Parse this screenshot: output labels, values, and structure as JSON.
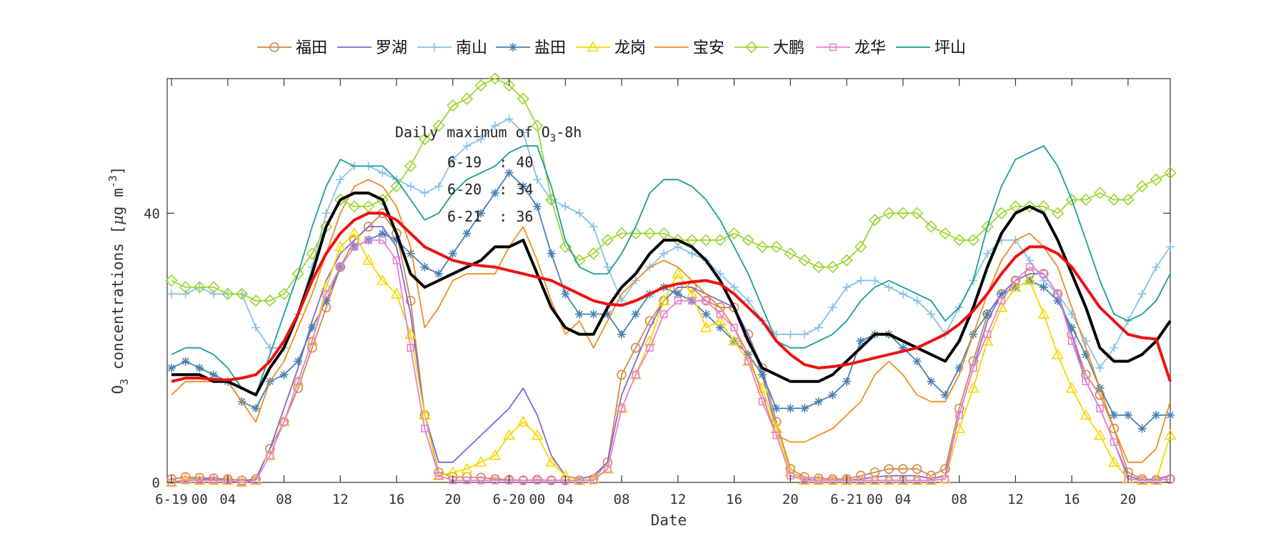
{
  "chart_data": {
    "type": "line",
    "xlabel": "Date",
    "ylabel_main": "O",
    "ylabel_sub": "3",
    "ylabel_rest": " concentrations [",
    "ylabel_mu": "μ",
    "ylabel_unit": "g m",
    "ylabel_sup": "-3",
    "ylabel_close": "]",
    "ylim": [
      0,
      60
    ],
    "yticks": [
      0,
      40
    ],
    "xlim": [
      0,
      71
    ],
    "x_ticks": [
      {
        "x": 0,
        "label": "6-19"
      },
      {
        "x": 4,
        "label": "04"
      },
      {
        "x": 8,
        "label": "08"
      },
      {
        "x": 12,
        "label": "12"
      },
      {
        "x": 16,
        "label": "16"
      },
      {
        "x": 20,
        "label": "20"
      },
      {
        "x": 24,
        "label": "6-20"
      },
      {
        "x": 28,
        "label": "04"
      },
      {
        "x": 32,
        "label": "08"
      },
      {
        "x": 36,
        "label": "12"
      },
      {
        "x": 40,
        "label": "16"
      },
      {
        "x": 44,
        "label": "20"
      },
      {
        "x": 48,
        "label": "6-21"
      },
      {
        "x": 52,
        "label": "04"
      },
      {
        "x": 56,
        "label": "08"
      },
      {
        "x": 60,
        "label": "12"
      },
      {
        "x": 64,
        "label": "16"
      },
      {
        "x": 68,
        "label": "20"
      }
    ],
    "x_extra_labels": [
      {
        "x": 2,
        "label": "00"
      },
      {
        "x": 26,
        "label": "00"
      },
      {
        "x": 50,
        "label": "00"
      }
    ],
    "annotation": {
      "title_main": "Daily maximum of O",
      "title_sub": "3",
      "title_rest": "-8h",
      "lines": [
        "6-19  : 40",
        "6-20  : 34",
        "6-21  : 36"
      ]
    },
    "legend_position": "top",
    "series": [
      {
        "name": "福田",
        "color": "#D2884B",
        "marker": "circle",
        "values": [
          0.5,
          0.8,
          0.7,
          0.6,
          0.5,
          0.3,
          0.5,
          5,
          9,
          14,
          20,
          26,
          32,
          36,
          38,
          40,
          37,
          27,
          10,
          1.5,
          0.8,
          0.8,
          0.7,
          0.5,
          0.4,
          0.3,
          0.4,
          0.3,
          0.3,
          0.3,
          0.5,
          3,
          16,
          20,
          24,
          27,
          29,
          29,
          27,
          26,
          26,
          22,
          17,
          9,
          2,
          0.8,
          0.6,
          0.5,
          0.5,
          1,
          1.5,
          2,
          2,
          2,
          1,
          2,
          11,
          18,
          25,
          28,
          30,
          31,
          31,
          28,
          22,
          16,
          13,
          8,
          1.5,
          0.5,
          0.4,
          0.5
        ]
      },
      {
        "name": "罗湖",
        "color": "#7B68D9",
        "marker": "none",
        "values": [
          0,
          0.5,
          0.5,
          0.5,
          0.3,
          0,
          0.5,
          5,
          11,
          17,
          24,
          30,
          34,
          36,
          38,
          38,
          35,
          25,
          10,
          3,
          3,
          5,
          7,
          9,
          11,
          14,
          10,
          4,
          1,
          0.5,
          1,
          3,
          13,
          18,
          23,
          27,
          29,
          29,
          28,
          27,
          26,
          22,
          16,
          8,
          1.5,
          0.5,
          0.3,
          0.3,
          0.3,
          0.5,
          0.8,
          1,
          1,
          1,
          0.5,
          1,
          10,
          17,
          24,
          28,
          30,
          31,
          31,
          28,
          22,
          15,
          11,
          6,
          1,
          0.3,
          0.5,
          1
        ]
      },
      {
        "name": "南山",
        "color": "#85C1E9",
        "marker": "plus",
        "values": [
          28,
          28,
          29,
          28,
          28,
          28,
          23,
          20,
          20,
          25,
          32,
          40,
          45,
          47,
          47,
          46,
          45,
          44,
          43,
          44,
          48,
          50,
          51,
          53,
          54,
          52,
          45,
          42,
          41,
          40,
          38,
          32,
          27,
          30,
          32,
          34,
          35,
          34,
          33,
          31,
          29,
          27,
          24,
          22,
          22,
          22,
          23,
          26,
          29,
          30,
          30,
          29,
          28,
          27,
          25,
          22,
          26,
          30,
          34,
          36,
          36,
          33,
          30,
          28,
          25,
          21,
          17,
          20,
          24,
          28,
          32,
          35
        ]
      },
      {
        "name": "盐田",
        "color": "#4682B4",
        "marker": "asterisk",
        "values": [
          17,
          18,
          17,
          16,
          15,
          12,
          11,
          15,
          16,
          18,
          23,
          27,
          32,
          35,
          36,
          37,
          36,
          34,
          32,
          31,
          34,
          37,
          40,
          43,
          46,
          44,
          41,
          34,
          28,
          25,
          25,
          25,
          22,
          25,
          28,
          29,
          28,
          27,
          25,
          23,
          21,
          19,
          16,
          11,
          11,
          11,
          12,
          13,
          15,
          21,
          22,
          22,
          20,
          18,
          15,
          13,
          17,
          22,
          25,
          28,
          29,
          30,
          29,
          27,
          23,
          19,
          14,
          10,
          10,
          8,
          10,
          10
        ]
      },
      {
        "name": "龙岗",
        "color": "#F5D800",
        "marker": "triangle",
        "values": [
          0,
          0.5,
          0.3,
          0.3,
          0.3,
          0,
          0.3,
          4,
          9,
          15,
          21,
          29,
          35,
          37,
          33,
          30,
          28,
          22,
          10,
          1,
          1.5,
          2,
          3,
          4,
          7,
          9,
          7,
          3,
          1,
          0.3,
          0.5,
          2,
          11,
          16,
          21,
          27,
          31,
          28,
          23,
          24,
          21,
          18,
          14,
          8,
          1.5,
          0.3,
          0.3,
          0.3,
          0.3,
          0.3,
          0.3,
          0.3,
          0.3,
          0.3,
          0.3,
          0.5,
          8,
          14,
          21,
          26,
          29,
          30,
          25,
          19,
          14,
          10,
          7,
          3,
          0.5,
          0.3,
          0.3,
          7
        ]
      },
      {
        "name": "宝安",
        "color": "#F28C1F",
        "marker": "none",
        "values": [
          13,
          15,
          15,
          15,
          15,
          12,
          9,
          15,
          18,
          23,
          28,
          34,
          40,
          44,
          45,
          44,
          41,
          35,
          23,
          26,
          30,
          31,
          31,
          31,
          35,
          38,
          33,
          27,
          22,
          24,
          20,
          24,
          28,
          30,
          32,
          33,
          32,
          30,
          28,
          26,
          23,
          19,
          13,
          7,
          6,
          6,
          7,
          8,
          10,
          12,
          16,
          18,
          16,
          13,
          12,
          12,
          16,
          22,
          28,
          33,
          36,
          37,
          35,
          32,
          26,
          20,
          14,
          8,
          3,
          3,
          5,
          12
        ]
      },
      {
        "name": "大鹏",
        "color": "#9BD630",
        "marker": "diamond",
        "values": [
          30,
          29,
          29,
          29,
          28,
          28,
          27,
          27,
          28,
          31,
          34,
          38,
          42,
          41,
          41,
          42,
          44,
          47,
          51,
          53,
          56,
          57,
          59,
          60,
          59,
          57,
          53,
          42,
          35,
          33,
          34,
          36,
          37,
          37,
          37,
          37,
          36,
          36,
          36,
          36,
          37,
          36,
          35,
          35,
          34,
          33,
          32,
          32,
          33,
          35,
          39,
          40,
          40,
          40,
          38,
          37,
          36,
          36,
          38,
          40,
          41,
          41,
          41,
          40,
          42,
          42,
          43,
          42,
          42,
          44,
          45,
          46
        ]
      },
      {
        "name": "龙华",
        "color": "#E582D6",
        "marker": "square",
        "values": [
          0,
          0.3,
          0.3,
          0.3,
          0.3,
          0,
          0.3,
          4,
          9,
          15,
          21,
          28,
          32,
          35,
          36,
          36,
          33,
          20,
          8,
          1,
          0.3,
          0.3,
          0.3,
          0.3,
          0.3,
          0.3,
          0.3,
          0.3,
          0.3,
          0.3,
          0.3,
          2,
          11,
          16,
          20,
          25,
          27,
          27,
          27,
          25,
          23,
          18,
          12,
          7,
          1,
          0.3,
          0.3,
          0.3,
          0.3,
          0.3,
          0.3,
          0.3,
          0.3,
          0.3,
          0.3,
          0.5,
          10,
          17,
          22,
          27,
          30,
          32,
          31,
          28,
          21,
          15,
          11,
          6,
          0.5,
          0.3,
          0.3,
          0.5
        ]
      },
      {
        "name": "坪山",
        "color": "#1A9E94",
        "marker": "none",
        "values": [
          19,
          20,
          20,
          19,
          17,
          14,
          13,
          19,
          25,
          31,
          38,
          44,
          48,
          47,
          47,
          47,
          45,
          42,
          39,
          40,
          43,
          45,
          46,
          47,
          49,
          50,
          50,
          44,
          36,
          32,
          31,
          31,
          34,
          38,
          43,
          45,
          45,
          44,
          42,
          39,
          35,
          31,
          26,
          21,
          20,
          20,
          21,
          22,
          24,
          27,
          29,
          30,
          29,
          28,
          27,
          24,
          26,
          30,
          38,
          44,
          48,
          49,
          50,
          47,
          42,
          36,
          30,
          25,
          24,
          25,
          27,
          31
        ]
      }
    ],
    "summary_lines": [
      {
        "name": "",
        "color": "#000000",
        "values": [
          16,
          16,
          16,
          15,
          15,
          14,
          13,
          17,
          20,
          25,
          31,
          38,
          42,
          43,
          43,
          42,
          37,
          31,
          29,
          30,
          31,
          32,
          33,
          35,
          35,
          36,
          31,
          26,
          23,
          22,
          22,
          26,
          29,
          31,
          34,
          36,
          36,
          35,
          33,
          30,
          26,
          21,
          17,
          16,
          15,
          15,
          15,
          16,
          18,
          20,
          22,
          22,
          21,
          20,
          19,
          18,
          21,
          26,
          32,
          37,
          40,
          41,
          40,
          36,
          31,
          26,
          20,
          18,
          18,
          19,
          21,
          24
        ]
      },
      {
        "name": "",
        "color": "#EE1111",
        "values": [
          15,
          15.5,
          15.5,
          15.3,
          15.2,
          15.5,
          16,
          18,
          21,
          25,
          30,
          34,
          37,
          39,
          40,
          40,
          39,
          37,
          35,
          34,
          33,
          32.5,
          32.2,
          32,
          31.5,
          31,
          30.5,
          30,
          29,
          28,
          27,
          26.5,
          26.3,
          27,
          28,
          29,
          29.5,
          29.8,
          30,
          29.5,
          28,
          26,
          24,
          21,
          19,
          17.5,
          17,
          17.2,
          17.5,
          18,
          18.5,
          19,
          19.5,
          20,
          21,
          22,
          23.5,
          25.5,
          28,
          31,
          33.5,
          35,
          35,
          34,
          32,
          29,
          26,
          24,
          22,
          21.5,
          21.3,
          15
        ]
      }
    ]
  }
}
